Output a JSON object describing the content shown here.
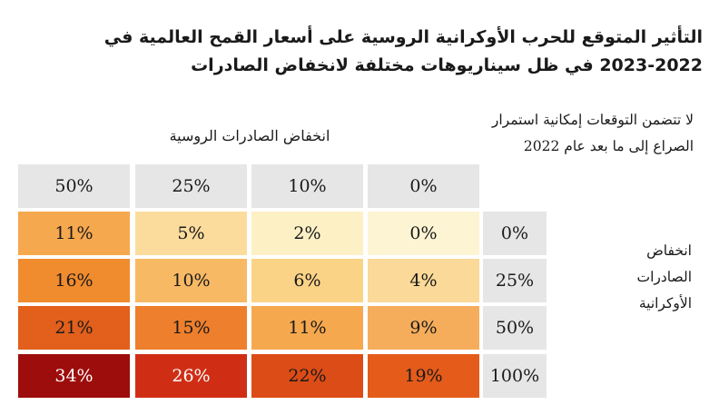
{
  "chart_data": {
    "type": "heatmap",
    "title": "التأثير المتوقع للحرب الأوكرانية الروسية على أسعار القمح العالمية في 2022-2023 في ظل سيناريوهات مختلفة لانخفاض الصادرات",
    "column_header": "انخفاض الصادرات الروسية",
    "row_header": "انخفاض الصادرات الأوكرانية",
    "note": "لا تتضمن التوقعات إمكانية استمرار الصراع إلى ما بعد عام 2022",
    "columns": [
      "50%",
      "25%",
      "10%",
      "0%"
    ],
    "rows": [
      "0%",
      "25%",
      "50%",
      "100%"
    ],
    "values": [
      [
        11,
        5,
        2,
        0
      ],
      [
        16,
        10,
        6,
        4
      ],
      [
        21,
        15,
        11,
        9
      ],
      [
        34,
        26,
        22,
        19
      ]
    ],
    "value_suffix": "%",
    "colors": {
      "0": "#fdf4d3",
      "2": "#fdf0c5",
      "4": "#fbd998",
      "5": "#fcdc9c",
      "6": "#fbd386",
      "9": "#f6ad5b",
      "10": "#f8b965",
      "11": "#f6a84f",
      "15": "#ee7f2c",
      "16": "#f08b2e",
      "19": "#e45b1a",
      "21": "#e2601b",
      "22": "#dc4c16",
      "26": "#cf2e15",
      "34": "#9d0d0b",
      "header_bg": "#e6e6e6"
    }
  }
}
